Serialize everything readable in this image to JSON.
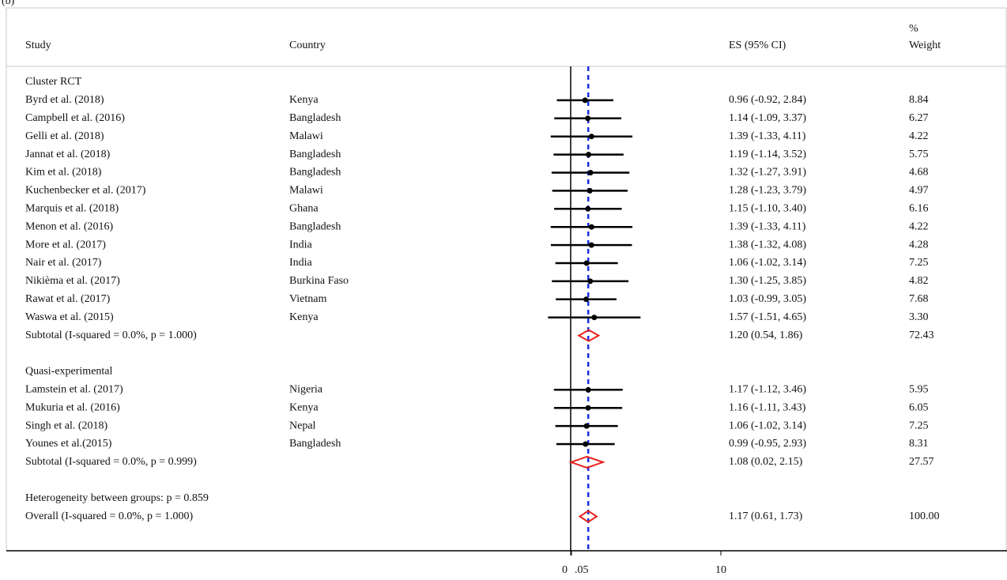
{
  "chart_data": {
    "type": "forest",
    "title": "(b)",
    "headers": {
      "study": "Study",
      "country": "Country",
      "es": "ES (95% CI)",
      "weight_top": "%",
      "weight": "Weight"
    },
    "groups": [
      {
        "name": "Cluster RCT",
        "studies": [
          {
            "study": "Byrd et al. (2018)",
            "country": "Kenya",
            "es": 0.96,
            "lo": -0.92,
            "hi": 2.84,
            "es_ci": "0.96 (-0.92, 2.84)",
            "weight": "8.84"
          },
          {
            "study": "Campbell et al. (2016)",
            "country": "Bangladesh",
            "es": 1.14,
            "lo": -1.09,
            "hi": 3.37,
            "es_ci": "1.14 (-1.09, 3.37)",
            "weight": "6.27"
          },
          {
            "study": "Gelli et al. (2018)",
            "country": "Malawi",
            "es": 1.39,
            "lo": -1.33,
            "hi": 4.11,
            "es_ci": "1.39 (-1.33, 4.11)",
            "weight": "4.22"
          },
          {
            "study": "Jannat et al. (2018)",
            "country": "Bangladesh",
            "es": 1.19,
            "lo": -1.14,
            "hi": 3.52,
            "es_ci": "1.19 (-1.14, 3.52)",
            "weight": "5.75"
          },
          {
            "study": "Kim et al. (2018)",
            "country": "Bangladesh",
            "es": 1.32,
            "lo": -1.27,
            "hi": 3.91,
            "es_ci": "1.32 (-1.27, 3.91)",
            "weight": "4.68"
          },
          {
            "study": "Kuchenbecker et al. (2017)",
            "country": "Malawi",
            "es": 1.28,
            "lo": -1.23,
            "hi": 3.79,
            "es_ci": "1.28 (-1.23, 3.79)",
            "weight": "4.97"
          },
          {
            "study": "Marquis et al. (2018)",
            "country": "Ghana",
            "es": 1.15,
            "lo": -1.1,
            "hi": 3.4,
            "es_ci": "1.15 (-1.10, 3.40)",
            "weight": "6.16"
          },
          {
            "study": "Menon et al. (2016)",
            "country": "Bangladesh",
            "es": 1.39,
            "lo": -1.33,
            "hi": 4.11,
            "es_ci": "1.39 (-1.33, 4.11)",
            "weight": "4.22"
          },
          {
            "study": "More et al. (2017)",
            "country": "India",
            "es": 1.38,
            "lo": -1.32,
            "hi": 4.08,
            "es_ci": "1.38 (-1.32, 4.08)",
            "weight": "4.28"
          },
          {
            "study": "Nair et al. (2017)",
            "country": "India",
            "es": 1.06,
            "lo": -1.02,
            "hi": 3.14,
            "es_ci": "1.06 (-1.02, 3.14)",
            "weight": "7.25"
          },
          {
            "study": "Nikièma et al. (2017)",
            "country": "Burkina Faso",
            "es": 1.3,
            "lo": -1.25,
            "hi": 3.85,
            "es_ci": "1.30 (-1.25, 3.85)",
            "weight": "4.82"
          },
          {
            "study": "Rawat et al. (2017)",
            "country": "Vietnam",
            "es": 1.03,
            "lo": -0.99,
            "hi": 3.05,
            "es_ci": "1.03 (-0.99, 3.05)",
            "weight": "7.68"
          },
          {
            "study": "Waswa et al. (2015)",
            "country": "Kenya",
            "es": 1.57,
            "lo": -1.51,
            "hi": 4.65,
            "es_ci": "1.57 (-1.51, 4.65)",
            "weight": "3.30"
          }
        ],
        "subtotal": {
          "label": "Subtotal  (I-squared = 0.0%, p = 1.000)",
          "es": 1.2,
          "lo": 0.54,
          "hi": 1.86,
          "es_ci": "1.20 (0.54, 1.86)",
          "weight": "72.43"
        }
      },
      {
        "name": "Quasi-experimental",
        "studies": [
          {
            "study": "Lamstein et al. (2017)",
            "country": "Nigeria",
            "es": 1.17,
            "lo": -1.12,
            "hi": 3.46,
            "es_ci": "1.17 (-1.12, 3.46)",
            "weight": "5.95"
          },
          {
            "study": "Mukuria et al. (2016)",
            "country": "Kenya",
            "es": 1.16,
            "lo": -1.11,
            "hi": 3.43,
            "es_ci": "1.16 (-1.11, 3.43)",
            "weight": "6.05"
          },
          {
            "study": "Singh et al. (2018)",
            "country": "Nepal",
            "es": 1.06,
            "lo": -1.02,
            "hi": 3.14,
            "es_ci": "1.06 (-1.02, 3.14)",
            "weight": "7.25"
          },
          {
            "study": "Younes et al.(2015)",
            "country": "Bangladesh",
            "es": 0.99,
            "lo": -0.95,
            "hi": 2.93,
            "es_ci": "0.99 (-0.95, 2.93)",
            "weight": "8.31"
          }
        ],
        "subtotal": {
          "label": "Subtotal  (I-squared = 0.0%, p = 0.999)",
          "es": 1.08,
          "lo": 0.02,
          "hi": 2.15,
          "es_ci": "1.08 (0.02, 2.15)",
          "weight": "27.57"
        }
      }
    ],
    "heterogeneity": "Heterogeneity between groups: p = 0.859",
    "overall": {
      "label": "Overall  (I-squared = 0.0%, p = 1.000)",
      "es": 1.17,
      "lo": 0.61,
      "hi": 1.73,
      "es_ci": "1.17 (0.61, 1.73)",
      "weight": "100.00"
    },
    "xlim": [
      0,
      10
    ],
    "xticks": [
      0,
      {
        "value": 0.05,
        "label": ".05"
      },
      10
    ],
    "point_color": "#000000",
    "diamond_color": "#e8211c",
    "overall_line_color": "#1a2fe0"
  }
}
